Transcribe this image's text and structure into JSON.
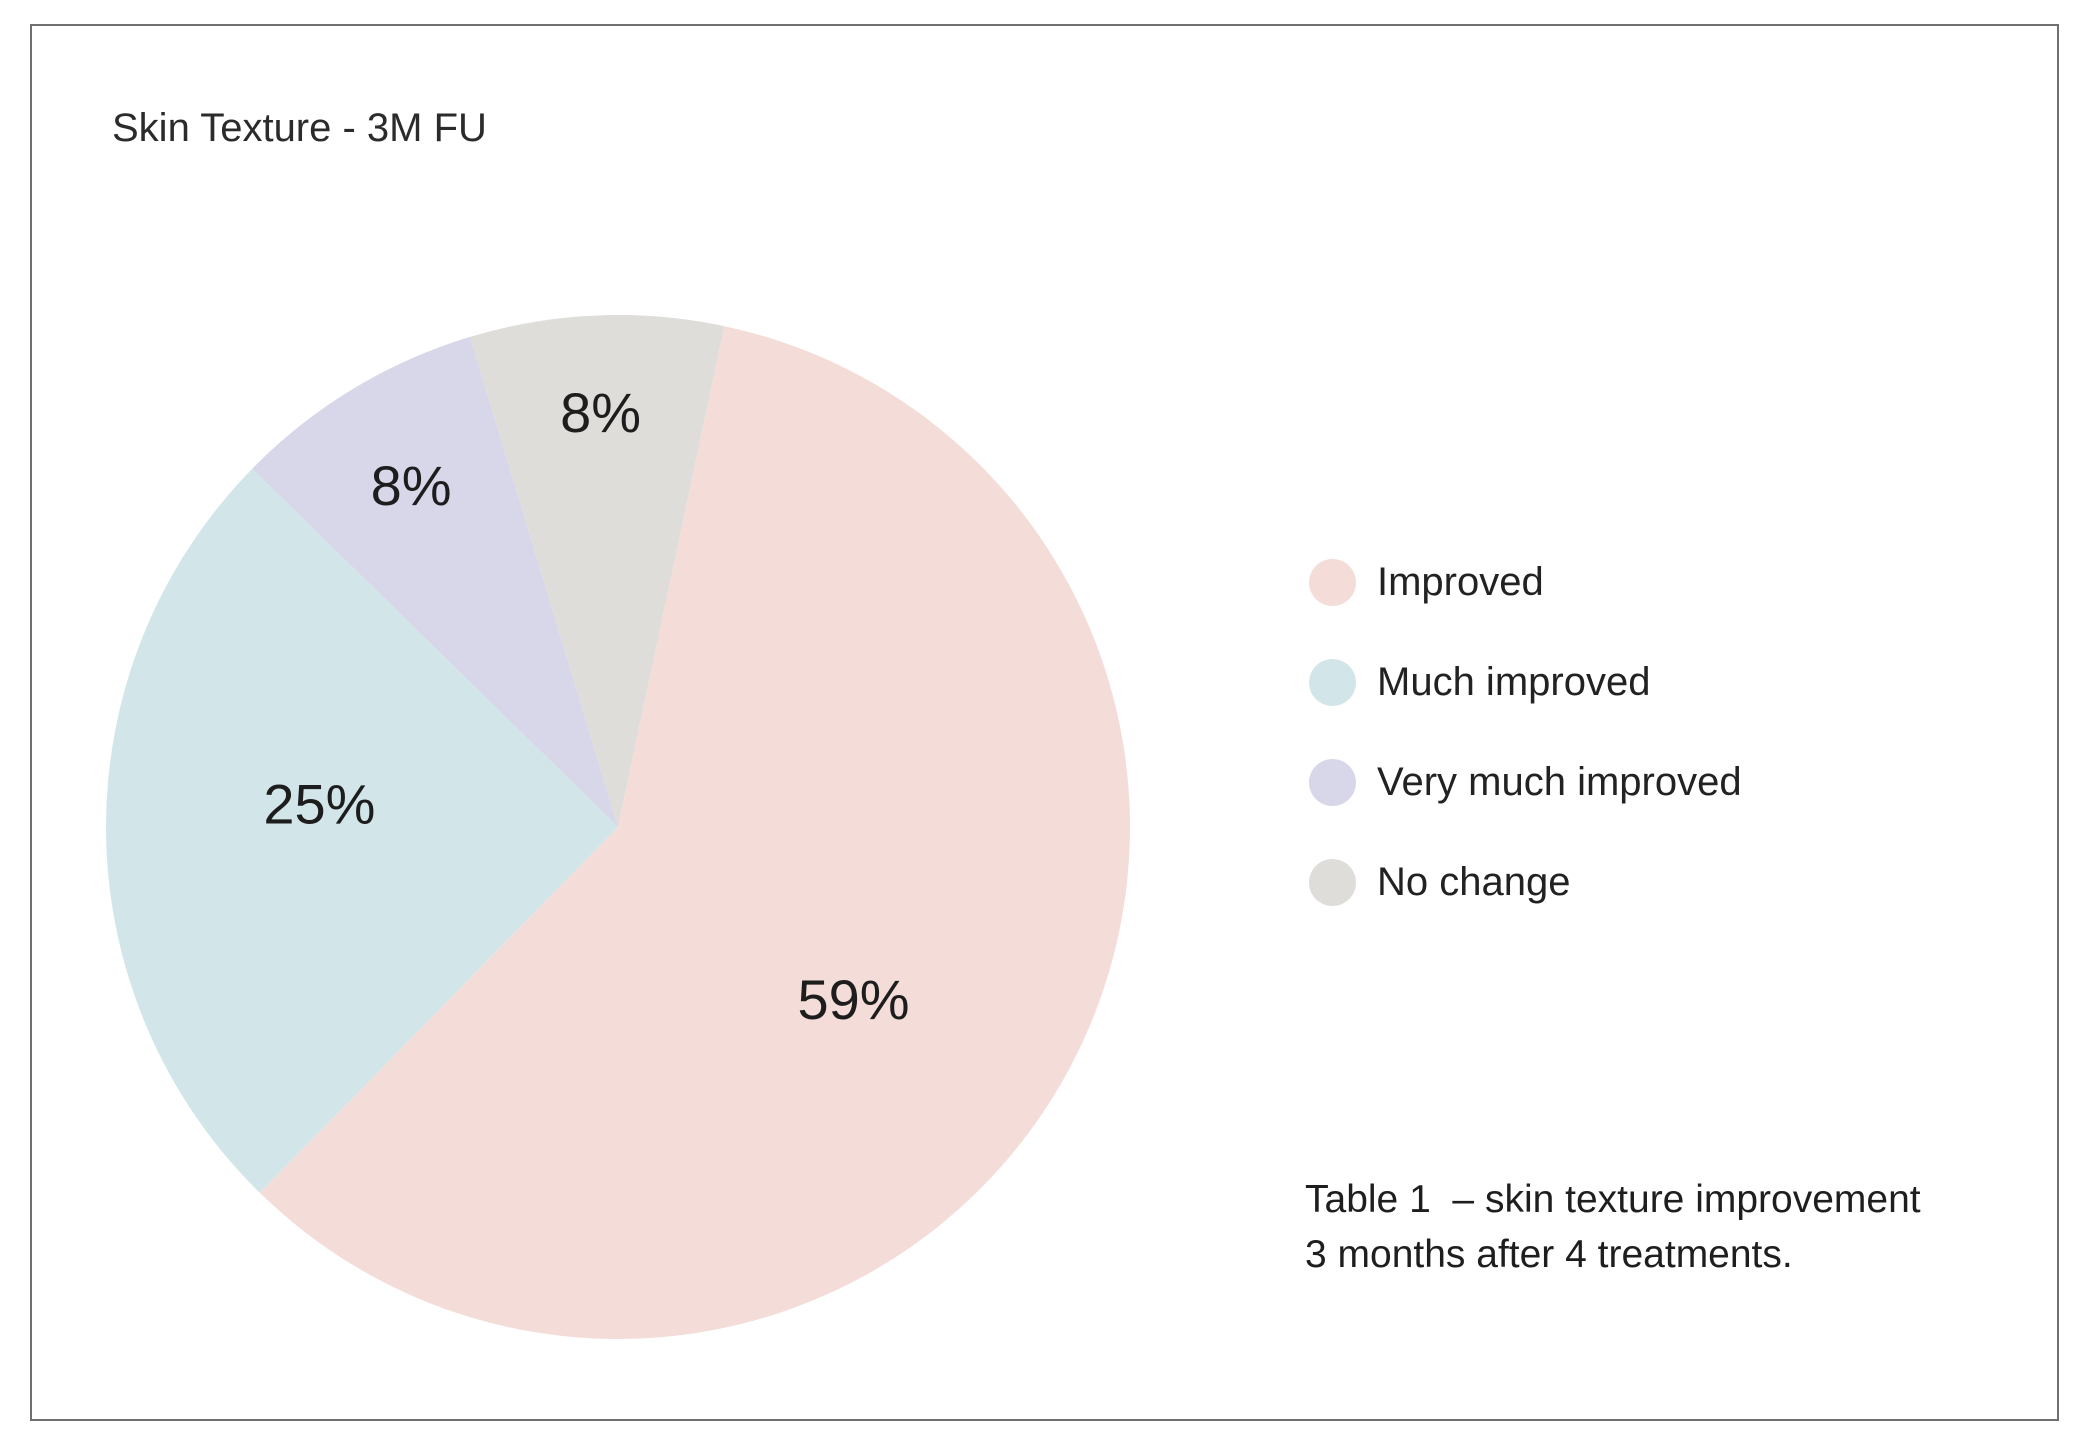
{
  "title": "Skin Texture - 3M FU",
  "chart_data": {
    "type": "pie",
    "title": "Skin Texture - 3M FU",
    "start_angle_deg_clockwise_from_top": 12,
    "direction": "clockwise",
    "legend_position": "right",
    "slices": [
      {
        "label": "Improved",
        "value": 59,
        "display": "59%",
        "color": "#f4ddd9"
      },
      {
        "label": "Much improved",
        "value": 25,
        "display": "25%",
        "color": "#d2e6ea"
      },
      {
        "label": "Very much improved",
        "value": 8,
        "display": "8%",
        "color": "#d8d6e9"
      },
      {
        "label": "No change",
        "value": 8,
        "display": "8%",
        "color": "#dfddd9"
      }
    ],
    "caption": "Table 1  – skin texture improvement 3 months after 4 treatments."
  },
  "caption": {
    "line1": "Table 1  – skin texture improvement",
    "line2": "3 months after 4 treatments."
  },
  "frame": {
    "border_color": "#707070"
  }
}
